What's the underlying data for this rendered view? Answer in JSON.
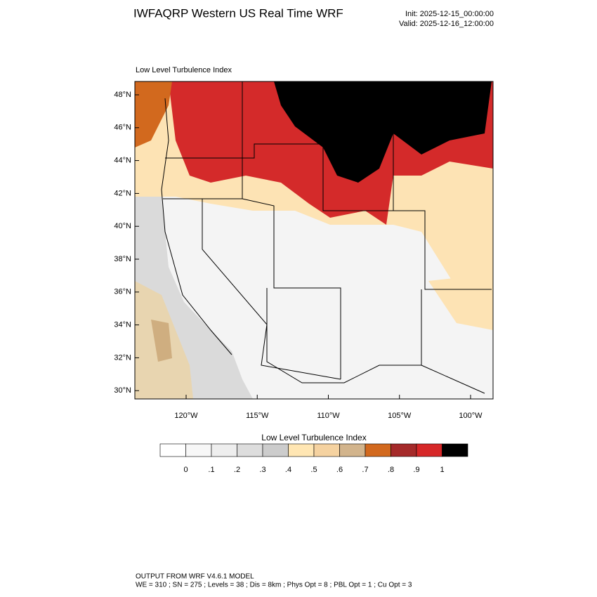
{
  "header": {
    "title": "IWFAQRP Western US Real Time WRF",
    "init": "Init: 2025-12-15_00:00:00",
    "valid": "Valid: 2025-12-16_12:00:00"
  },
  "map": {
    "subtitle": "Low Level Turbulence Index",
    "lat_labels": [
      "48°N",
      "46°N",
      "44°N",
      "42°N",
      "40°N",
      "38°N",
      "36°N",
      "34°N",
      "32°N",
      "30°N"
    ],
    "lon_labels": [
      "120°W",
      "115°W",
      "110°W",
      "105°W",
      "100°W"
    ]
  },
  "colorbar": {
    "title": "Low Level Turbulence Index",
    "colors": [
      "#ffffff",
      "#f7f7f7",
      "#eeeeee",
      "#dddddd",
      "#cccccc",
      "#ffe6b3",
      "#f5d2a0",
      "#d2b48c",
      "#d2691e",
      "#a52a2a",
      "#d62728",
      "#000000"
    ],
    "labels": [
      "0",
      ".1",
      ".2",
      ".3",
      ".4",
      ".5",
      ".6",
      ".7",
      ".8",
      ".9",
      "1"
    ]
  },
  "footer": {
    "line1": "OUTPUT FROM WRF V4.6.1 MODEL",
    "line2": "WE = 310 ; SN = 275 ; Levels = 38 ; Dis = 8km ; Phys Opt = 8 ; PBL Opt = 1 ; Cu Opt = 3"
  }
}
